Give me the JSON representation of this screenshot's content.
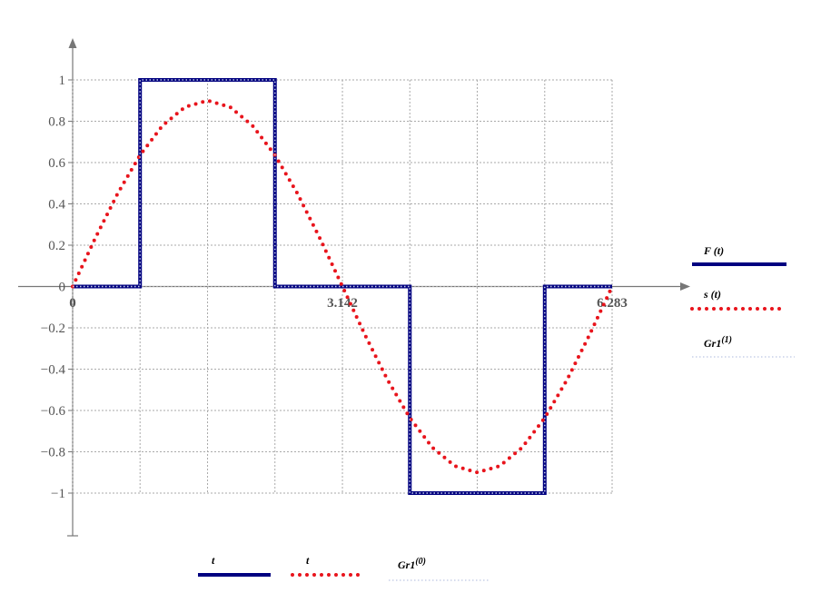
{
  "chart_data": {
    "type": "line",
    "xlim": [
      0,
      6.283
    ],
    "ylim": [
      -1,
      1
    ],
    "xticks": [
      0,
      {
        "value": 0.785,
        "label": null
      },
      {
        "value": 1.571,
        "label": null
      },
      {
        "value": 2.356,
        "label": null
      },
      3.142,
      {
        "value": 3.927,
        "label": null
      },
      {
        "value": 4.712,
        "label": null
      },
      {
        "value": 5.498,
        "label": null
      },
      6.283
    ],
    "yticks": [
      {
        "value": -1,
        "label": "−1"
      },
      {
        "value": -0.8,
        "label": "−0.8"
      },
      {
        "value": -0.6,
        "label": "−0.6"
      },
      {
        "value": -0.4,
        "label": "−0.4"
      },
      {
        "value": -0.2,
        "label": "−0.2"
      },
      0,
      0.2,
      0.4,
      0.6,
      0.8,
      1
    ],
    "grid": true,
    "series": [
      {
        "name": "F (t)",
        "x_name": "t",
        "color": "#000080",
        "style": "solid",
        "x": [
          0,
          0.785,
          0.785,
          2.356,
          2.356,
          3.927,
          3.927,
          5.498,
          5.498,
          6.283
        ],
        "values": [
          0,
          0,
          1,
          1,
          0,
          0,
          -1,
          -1,
          0,
          0
        ]
      },
      {
        "name": "s (t)",
        "x_name": "t",
        "color": "#e8141c",
        "style": "dots",
        "x": [
          0,
          0.262,
          0.524,
          0.785,
          1.047,
          1.309,
          1.571,
          1.833,
          2.094,
          2.356,
          2.618,
          2.88,
          3.142,
          3.403,
          3.665,
          3.927,
          4.189,
          4.451,
          4.712,
          4.974,
          5.236,
          5.498,
          5.76,
          6.021,
          6.283
        ],
        "values": [
          0,
          0.233,
          0.45,
          0.636,
          0.779,
          0.869,
          0.9,
          0.869,
          0.779,
          0.636,
          0.45,
          0.233,
          0,
          -0.233,
          -0.45,
          -0.636,
          -0.779,
          -0.869,
          -0.9,
          -0.869,
          -0.779,
          -0.636,
          -0.45,
          -0.233,
          0
        ]
      },
      {
        "name": "Gr1",
        "name_sup": "(1)",
        "x_name": "Gr1",
        "x_name_sup": "(0)",
        "color": "#c8d0e8",
        "style": "dotted",
        "x": [
          0,
          0.785,
          0.785,
          2.356,
          2.356,
          3.927,
          3.927,
          5.498,
          5.498,
          6.283
        ],
        "values": [
          0,
          0,
          1,
          1,
          0,
          0,
          -1,
          -1,
          0,
          0
        ]
      }
    ]
  }
}
